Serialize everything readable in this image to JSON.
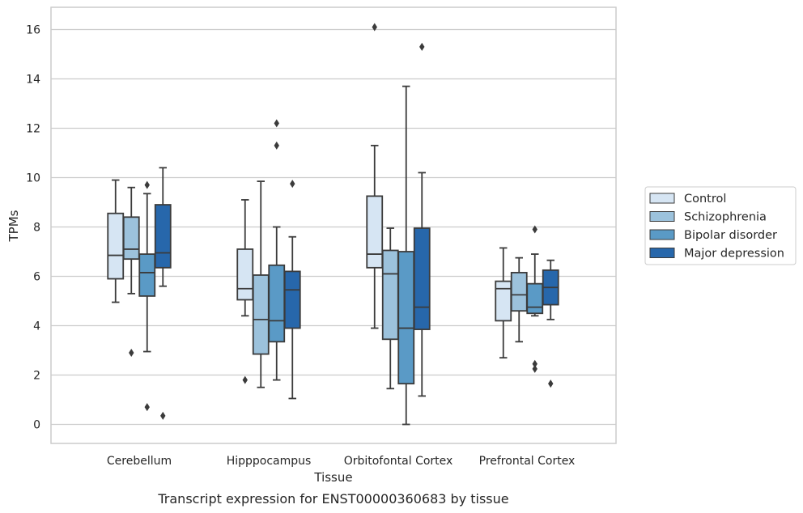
{
  "chart_data": {
    "type": "box",
    "title": "",
    "caption": "Transcript expression for ENST00000360683 by tissue",
    "xlabel": "Tissue",
    "ylabel": "TPMs",
    "ylim": [
      -0.75,
      16.85
    ],
    "yticks": [
      0,
      2,
      4,
      6,
      8,
      10,
      12,
      14,
      16
    ],
    "grid": "horizontal",
    "legend_position": "right",
    "categories": [
      "Cerebellum",
      "Hipppocampus",
      "Orbitofontal Cortex",
      "Prefrontal Cortex"
    ],
    "series": [
      {
        "name": "Control",
        "color": "#d6e5f3",
        "boxes": [
          {
            "whislo": 4.95,
            "q1": 5.9,
            "med": 6.85,
            "q3": 8.55,
            "whishi": 9.9,
            "fliers": []
          },
          {
            "whislo": 4.4,
            "q1": 5.05,
            "med": 5.5,
            "q3": 7.1,
            "whishi": 9.1,
            "fliers": [
              1.8
            ]
          },
          {
            "whislo": 3.9,
            "q1": 6.35,
            "med": 6.9,
            "q3": 9.25,
            "whishi": 11.3,
            "fliers": [
              16.1
            ]
          },
          {
            "whislo": 2.7,
            "q1": 4.2,
            "med": 5.5,
            "q3": 5.8,
            "whishi": 7.15,
            "fliers": []
          }
        ]
      },
      {
        "name": "Schizophrenia",
        "color": "#9cc2dc",
        "boxes": [
          {
            "whislo": 5.3,
            "q1": 6.7,
            "med": 7.1,
            "q3": 8.4,
            "whishi": 9.6,
            "fliers": [
              2.9
            ]
          },
          {
            "whislo": 1.5,
            "q1": 2.85,
            "med": 4.25,
            "q3": 6.05,
            "whishi": 9.85,
            "fliers": []
          },
          {
            "whislo": 1.45,
            "q1": 3.45,
            "med": 6.1,
            "q3": 7.05,
            "whishi": 7.95,
            "fliers": []
          },
          {
            "whislo": 3.35,
            "q1": 4.6,
            "med": 5.25,
            "q3": 6.15,
            "whishi": 6.75,
            "fliers": []
          }
        ]
      },
      {
        "name": "Bipolar disorder",
        "color": "#5a9ac6",
        "boxes": [
          {
            "whislo": 2.95,
            "q1": 5.2,
            "med": 6.15,
            "q3": 6.9,
            "whishi": 9.35,
            "fliers": [
              9.7,
              0.7
            ]
          },
          {
            "whislo": 1.8,
            "q1": 3.35,
            "med": 4.2,
            "q3": 6.45,
            "whishi": 8.0,
            "fliers": [
              12.2,
              11.3
            ]
          },
          {
            "whislo": 0.0,
            "q1": 1.65,
            "med": 3.9,
            "q3": 7.0,
            "whishi": 13.7,
            "fliers": []
          },
          {
            "whislo": 4.4,
            "q1": 4.5,
            "med": 4.75,
            "q3": 5.7,
            "whishi": 6.9,
            "fliers": [
              7.9,
              2.45,
              2.25
            ]
          }
        ]
      },
      {
        "name": "Major depression",
        "color": "#2767ab",
        "boxes": [
          {
            "whislo": 5.6,
            "q1": 6.35,
            "med": 6.95,
            "q3": 8.9,
            "whishi": 10.4,
            "fliers": [
              0.35
            ]
          },
          {
            "whislo": 1.05,
            "q1": 3.9,
            "med": 5.45,
            "q3": 6.2,
            "whishi": 7.6,
            "fliers": [
              9.75
            ]
          },
          {
            "whislo": 1.15,
            "q1": 3.85,
            "med": 4.75,
            "q3": 7.95,
            "whishi": 10.2,
            "fliers": [
              15.3
            ]
          },
          {
            "whislo": 4.25,
            "q1": 4.85,
            "med": 5.55,
            "q3": 6.25,
            "whishi": 6.65,
            "fliers": [
              1.65
            ]
          }
        ]
      }
    ]
  }
}
